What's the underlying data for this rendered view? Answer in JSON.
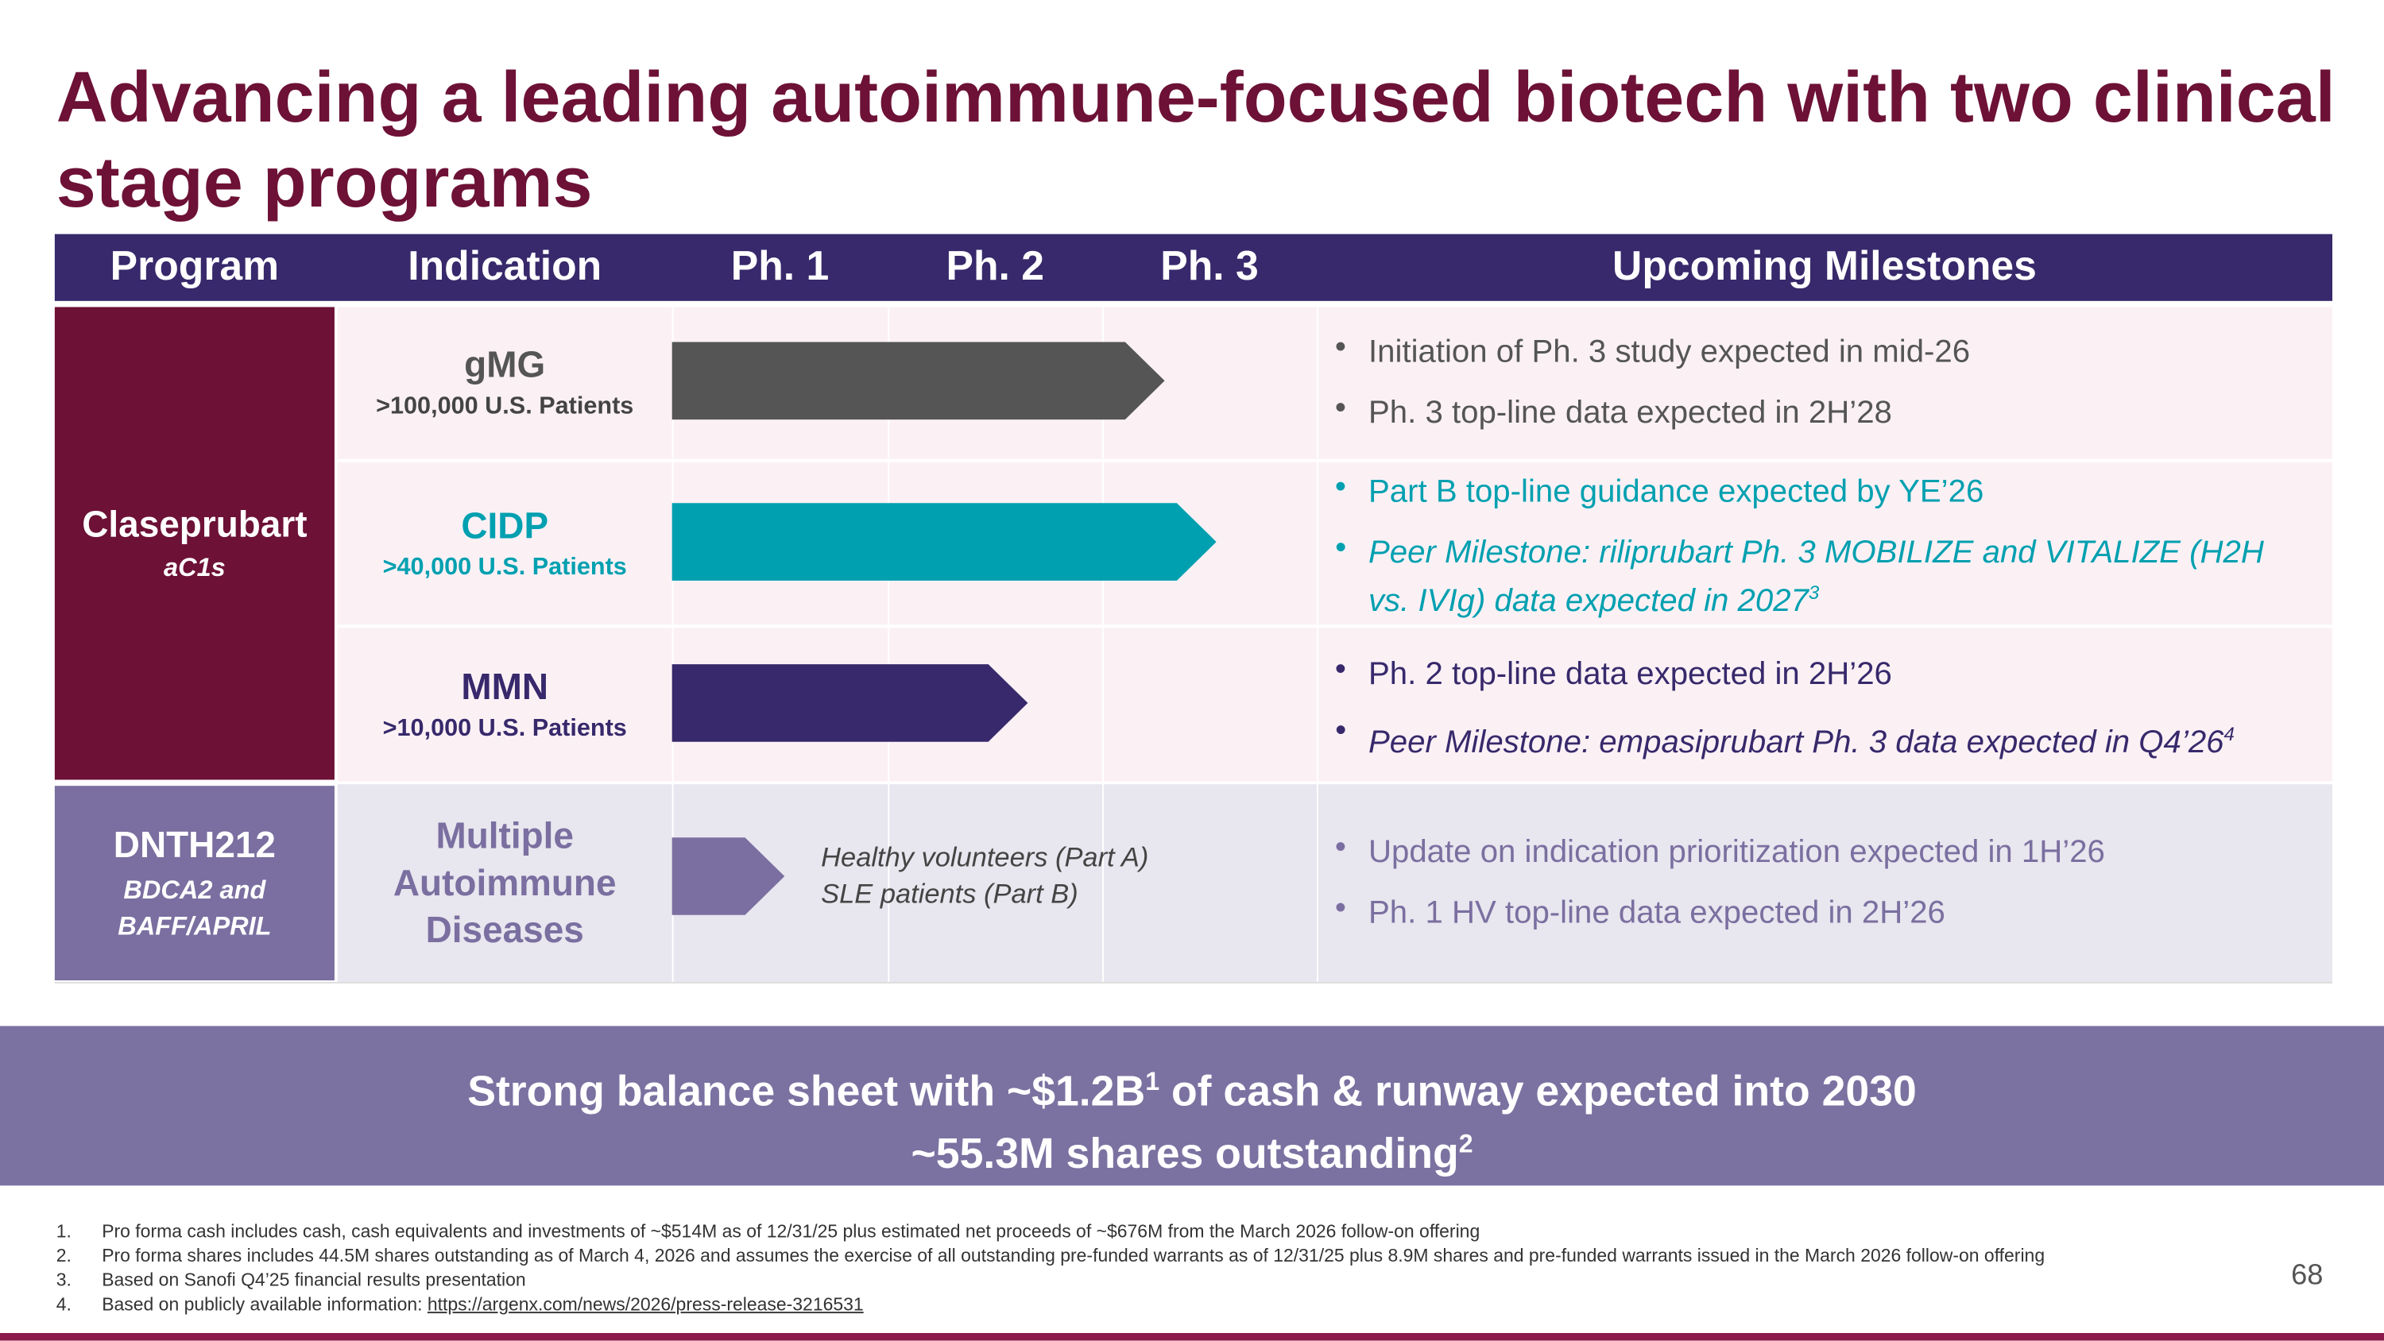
{
  "title": "Advancing a leading autoimmune-focused biotech with two clinical stage programs",
  "header": [
    "Program",
    "Indication",
    "Ph. 1",
    "Ph. 2",
    "Ph. 3",
    "Upcoming Milestones"
  ],
  "programs": [
    {
      "name": "Claseprubart",
      "target": "aC1s",
      "indications": [
        {
          "name": "gMG",
          "patients": ">100,000 U.S. Patients",
          "milestones": [
            {
              "text": "Initiation of Ph. 3 study expected in mid-26"
            },
            {
              "text": "Ph. 3 top-line data expected in 2H’28"
            }
          ]
        },
        {
          "name": "CIDP",
          "patients": ">40,000 U.S. Patients",
          "milestones": [
            {
              "text": "Part B top-line guidance expected by YE’26"
            },
            {
              "text": "Peer Milestone: riliprubart Ph. 3 MOBILIZE and VITALIZE (H2H vs. IVIg) data expected in 2027",
              "sup": "3"
            }
          ]
        },
        {
          "name": "MMN",
          "patients": ">10,000 U.S. Patients",
          "milestones": [
            {
              "text": "Ph. 2 top-line data expected in 2H’26"
            },
            {
              "text": "Peer Milestone: empasiprubart Ph. 3 data expected in Q4’26",
              "sup": "4"
            }
          ]
        }
      ]
    },
    {
      "name": "DNTH212",
      "target": "BDCA2 and BAFF/APRIL",
      "indications": [
        {
          "name": "Multiple Autoimmune Diseases",
          "note": [
            "Healthy volunteers (Part A)",
            "SLE patients (Part B)"
          ],
          "milestones": [
            {
              "text": "Update on indication prioritization expected in 1H’26"
            },
            {
              "text": "Ph. 1 HV top-line data expected in 2H’26"
            }
          ]
        }
      ]
    }
  ],
  "banner": {
    "line1": [
      "Strong balance sheet with ~$1.2B",
      "1",
      " of cash & runway expected into 2030"
    ],
    "line2": [
      "~55.3M shares outstanding",
      "2"
    ]
  },
  "footnotes": [
    {
      "number": "1.",
      "text": "Pro forma cash includes cash, cash equivalents and investments of ~$514M as of 12/31/25 plus estimated net proceeds of ~$676M from the March 2026 follow-on offering"
    },
    {
      "number": "2.",
      "text": "Pro forma shares includes 44.5M shares outstanding as of March 4, 2026 and assumes the exercise of all outstanding pre-funded warrants as of 12/31/25 plus 8.9M shares and pre-funded warrants issued in the March 2026 follow-on offering"
    },
    {
      "number": "3.",
      "text": "Based on Sanofi Q4’25 financial results presentation"
    },
    {
      "number": "4.",
      "text": "Based on publicly available information: ",
      "link": "https://argenx.com/news/2026/press-release-3216531"
    }
  ],
  "page_number": "68"
}
